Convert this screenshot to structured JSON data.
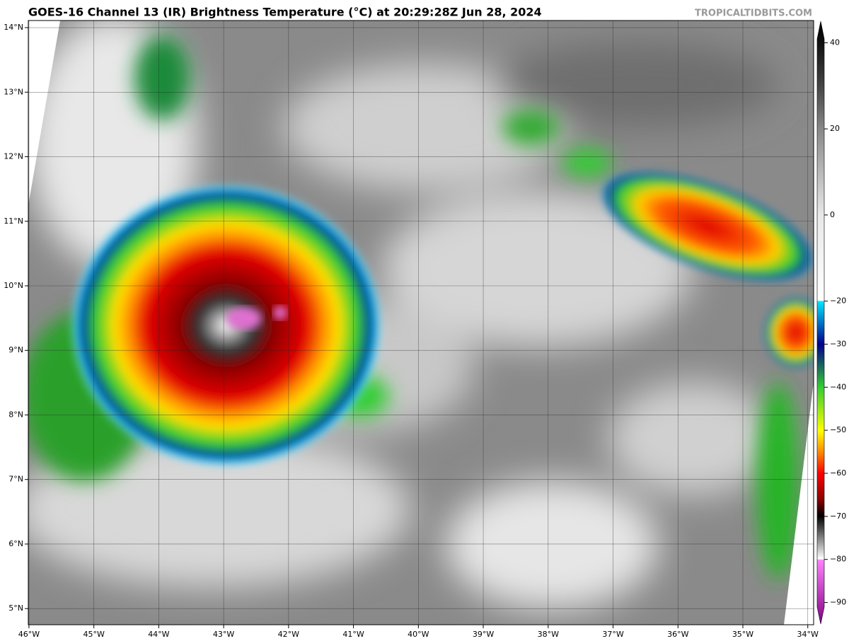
{
  "title": "GOES-16 Channel 13 (IR) Brightness Temperature (°C) at 20:29:28Z Jun 28, 2024",
  "credit": "TROPICALTIDBITS.COM",
  "map": {
    "xlim": [
      -46.01,
      -33.91
    ],
    "ylim": [
      4.75,
      14.11
    ],
    "xticks": [
      {
        "value": -46,
        "label": "46°W"
      },
      {
        "value": -45,
        "label": "45°W"
      },
      {
        "value": -44,
        "label": "44°W"
      },
      {
        "value": -43,
        "label": "43°W"
      },
      {
        "value": -42,
        "label": "42°W"
      },
      {
        "value": -41,
        "label": "41°W"
      },
      {
        "value": -40,
        "label": "40°W"
      },
      {
        "value": -39,
        "label": "39°W"
      },
      {
        "value": -38,
        "label": "38°W"
      },
      {
        "value": -37,
        "label": "37°W"
      },
      {
        "value": -36,
        "label": "36°W"
      },
      {
        "value": -35,
        "label": "35°W"
      },
      {
        "value": -34,
        "label": "34°W"
      }
    ],
    "yticks": [
      {
        "value": 5,
        "label": "5°N"
      },
      {
        "value": 6,
        "label": "6°N"
      },
      {
        "value": 7,
        "label": "7°N"
      },
      {
        "value": 8,
        "label": "8°N"
      },
      {
        "value": 9,
        "label": "9°N"
      },
      {
        "value": 10,
        "label": "10°N"
      },
      {
        "value": 11,
        "label": "11°N"
      },
      {
        "value": 12,
        "label": "12°N"
      },
      {
        "value": 13,
        "label": "13°N"
      },
      {
        "value": 14,
        "label": "14°N"
      }
    ],
    "grid": true
  },
  "colorbar": {
    "clim": [
      -95,
      45
    ],
    "ticks": [
      40,
      20,
      0,
      {
        "value": -20,
        "label": "−20"
      },
      {
        "value": -30,
        "label": "−30"
      },
      {
        "value": -40,
        "label": "−40"
      },
      {
        "value": -50,
        "label": "−50"
      },
      {
        "value": -60,
        "label": "−60"
      },
      {
        "value": -70,
        "label": "−70"
      },
      {
        "value": -80,
        "label": "−80"
      },
      {
        "value": -90,
        "label": "−90"
      }
    ]
  }
}
